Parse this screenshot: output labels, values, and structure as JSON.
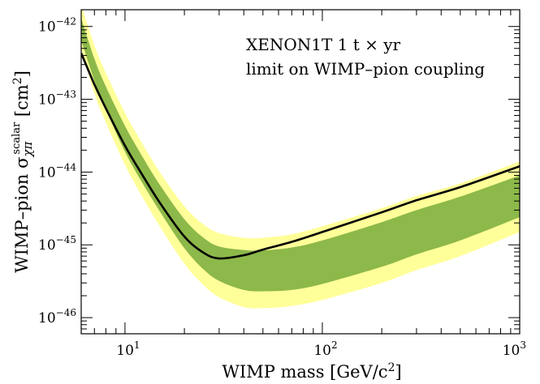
{
  "chart_data": {
    "type": "line",
    "xlabel_text": "WIMP mass [GeV/c",
    "xlabel_sup": "2",
    "xlabel_end": "]",
    "ylabel_text": "WIMP–pion σ",
    "ylabel_sub": "χπ",
    "ylabel_sup": "scalar",
    "ylabel_unit": " [cm",
    "ylabel_unit_sup": "2",
    "ylabel_end": "]",
    "annotation_line1": "XENON1T 1 t × yr",
    "annotation_line2": "limit on WIMP–pion coupling",
    "x_scale": "log",
    "y_scale": "log",
    "xlim": [
      6,
      1000
    ],
    "ylim": [
      6e-47,
      1.7e-42
    ],
    "x_ticks": [
      {
        "value": 10,
        "base": "10",
        "exp": "1"
      },
      {
        "value": 100,
        "base": "10",
        "exp": "2"
      },
      {
        "value": 1000,
        "base": "10",
        "exp": "3"
      }
    ],
    "y_ticks": [
      {
        "value": 1e-46,
        "base": "10",
        "exp": "−46"
      },
      {
        "value": 1e-45,
        "base": "10",
        "exp": "−45"
      },
      {
        "value": 1e-44,
        "base": "10",
        "exp": "−44"
      },
      {
        "value": 1e-43,
        "base": "10",
        "exp": "−43"
      },
      {
        "value": 1e-42,
        "base": "10",
        "exp": "−42"
      }
    ],
    "colors": {
      "limit_line": "#000000",
      "band_1sigma": "#8db84a",
      "band_2sigma": "#ffff99"
    },
    "series": [
      {
        "role": "limit",
        "x": [
          6,
          7,
          8,
          10,
          12,
          15,
          20,
          25,
          30,
          40,
          50,
          70,
          100,
          200,
          300,
          500,
          1000
        ],
        "y": [
          4.3e-43,
          1.6e-43,
          7.5e-44,
          2.3e-44,
          1e-44,
          3.8e-45,
          1.3e-45,
          7.8e-46,
          6.5e-46,
          7.2e-46,
          8.6e-46,
          1.1e-45,
          1.5e-45,
          2.8e-45,
          4.1e-45,
          6.2e-45,
          1.2e-44
        ]
      },
      {
        "role": "band_2sigma",
        "x": [
          6,
          7,
          8,
          10,
          12,
          15,
          20,
          25,
          30,
          40,
          50,
          70,
          100,
          200,
          300,
          500,
          1000
        ],
        "upper": [
          2e-42,
          5.5e-43,
          2.3e-43,
          6.5e-44,
          2.7e-44,
          1e-44,
          3.4e-45,
          1.9e-45,
          1.45e-45,
          1.25e-45,
          1.25e-45,
          1.4e-45,
          1.8e-45,
          3.2e-45,
          4.7e-45,
          7e-45,
          1.4e-44
        ],
        "lower": [
          5e-43,
          1.2e-43,
          4.8e-44,
          1.25e-44,
          5e-45,
          1.8e-45,
          5.5e-46,
          2.8e-46,
          1.9e-46,
          1.4e-46,
          1.35e-46,
          1.45e-46,
          1.75e-46,
          3e-46,
          4.5e-46,
          7e-46,
          1.5e-45
        ]
      },
      {
        "role": "band_1sigma",
        "x": [
          6,
          7,
          8,
          10,
          12,
          15,
          20,
          25,
          30,
          40,
          50,
          70,
          100,
          200,
          300,
          500,
          1000
        ],
        "upper": [
          1.3e-42,
          3.6e-43,
          1.5e-43,
          4.3e-44,
          1.8e-44,
          6.7e-45,
          2.25e-45,
          1.25e-45,
          9.5e-46,
          8.5e-46,
          8.4e-46,
          9.2e-46,
          1.15e-45,
          2.05e-45,
          3e-45,
          4.6e-45,
          9e-45
        ],
        "lower": [
          6.5e-43,
          1.8e-43,
          7.2e-44,
          1.9e-44,
          7.8e-45,
          2.9e-45,
          9e-46,
          4.6e-46,
          3.2e-46,
          2.4e-46,
          2.3e-46,
          2.4e-46,
          2.9e-46,
          5e-46,
          7.4e-46,
          1.15e-45,
          2.4e-45
        ]
      }
    ]
  }
}
